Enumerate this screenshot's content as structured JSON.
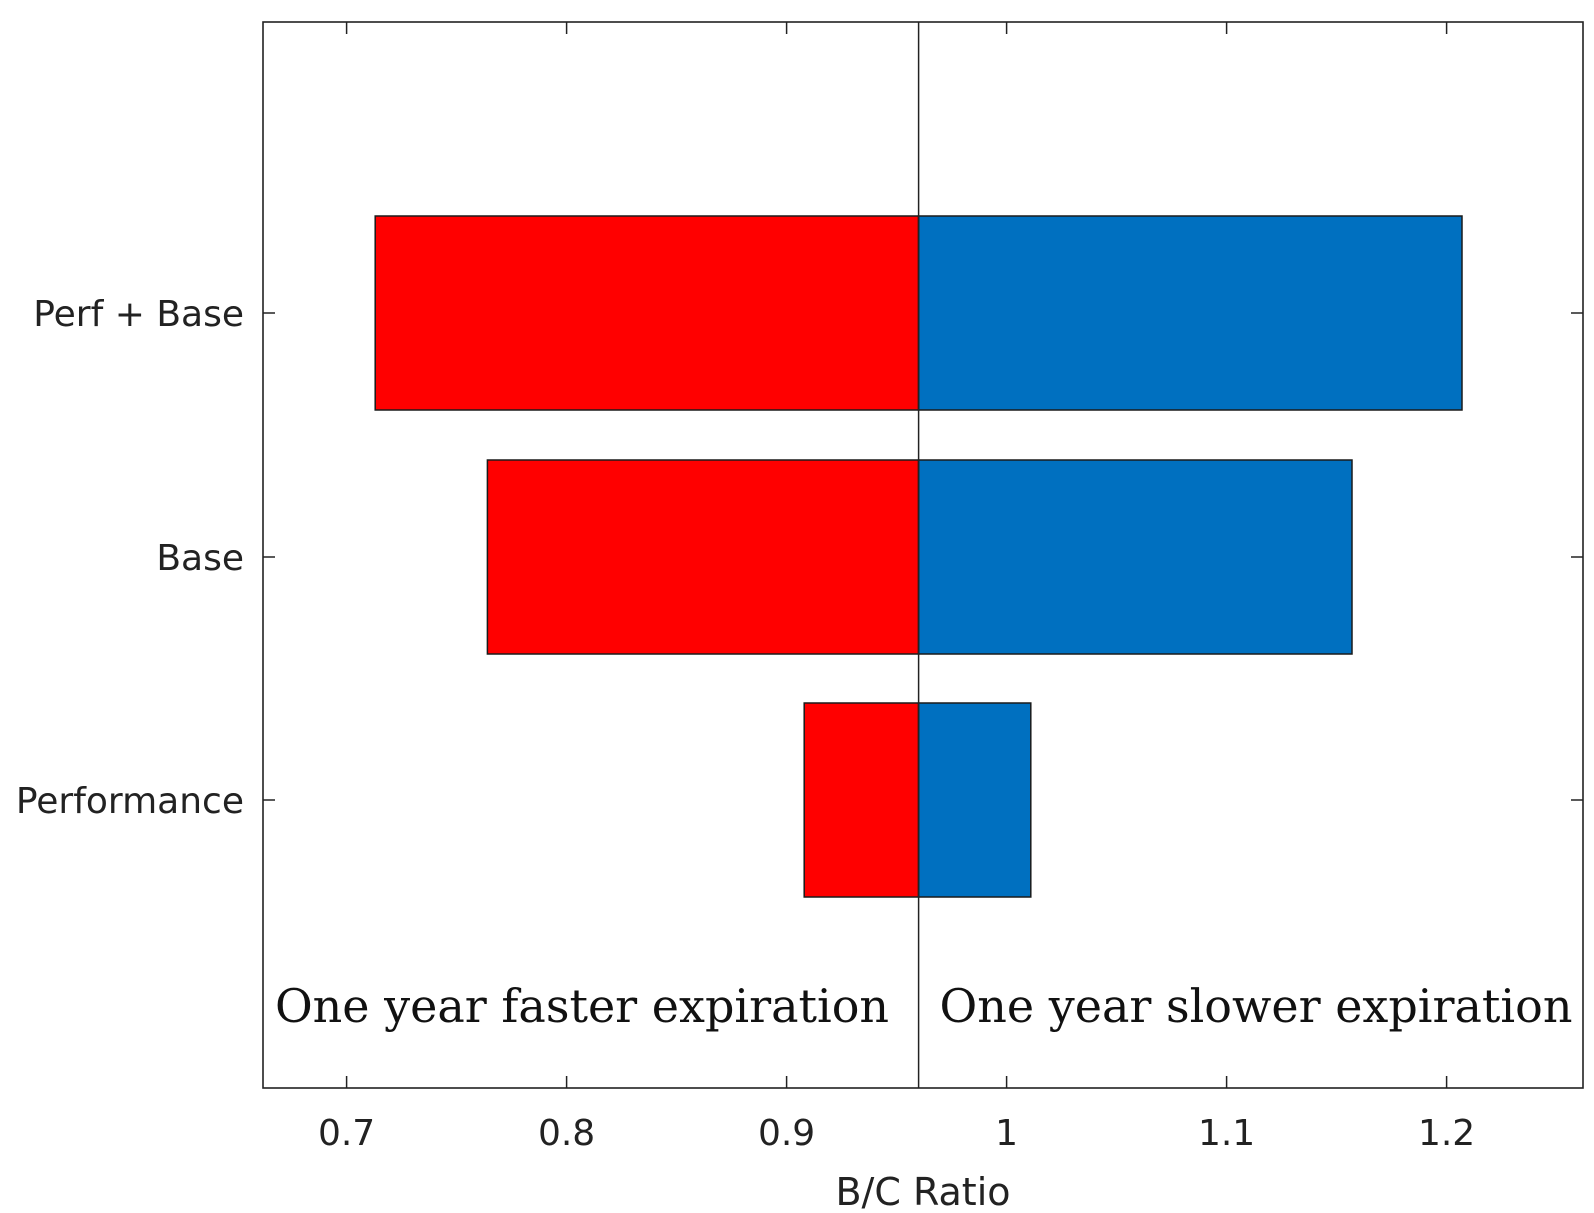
{
  "chart_data": {
    "type": "bar",
    "orientation": "horizontal",
    "chart_style": "tornado",
    "categories": [
      "Performance",
      "Base",
      "Perf + Base"
    ],
    "baseline": 0.96,
    "series": [
      {
        "name": "One year faster expiration",
        "color": "#ff0000",
        "values": [
          0.908,
          0.764,
          0.713
        ]
      },
      {
        "name": "One year slower expiration",
        "color": "#0070c0",
        "values": [
          1.011,
          1.157,
          1.207
        ]
      }
    ],
    "xlabel": "B/C Ratio",
    "ylabel": "",
    "title": "",
    "xlim": [
      0.662,
      1.262
    ],
    "xticks": [
      0.7,
      0.8,
      0.9,
      1.0,
      1.1,
      1.2
    ],
    "xtick_labels": [
      "0.7",
      "0.8",
      "0.9",
      "1",
      "1.1",
      "1.2"
    ],
    "annotations": {
      "left": "One year faster expiration",
      "right": "One year slower expiration"
    },
    "grid": false,
    "legend": "none"
  }
}
